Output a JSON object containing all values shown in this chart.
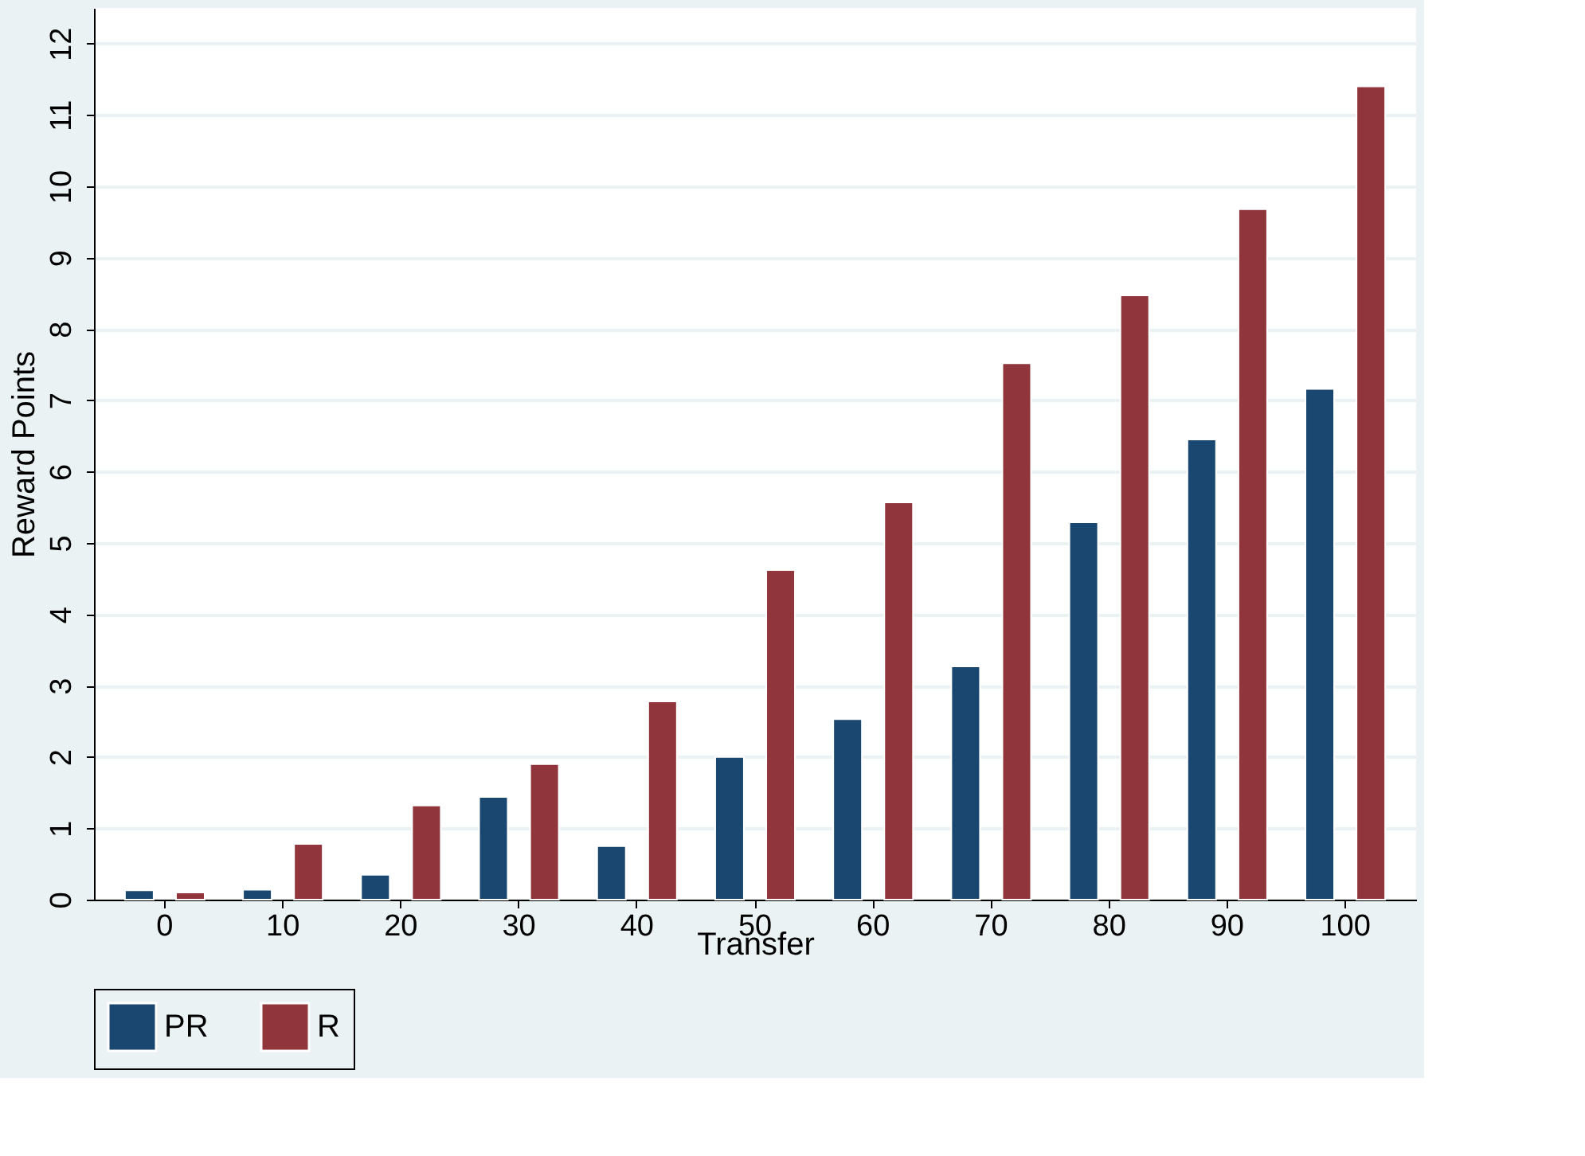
{
  "chart_data": {
    "type": "bar",
    "xlabel": "Transfer",
    "ylabel": "Reward Points",
    "categories": [
      "0",
      "10",
      "20",
      "30",
      "40",
      "50",
      "60",
      "70",
      "80",
      "90",
      "100"
    ],
    "series": [
      {
        "name": "PR",
        "color": "#1a476f",
        "values": [
          0.13,
          0.14,
          0.35,
          1.44,
          0.75,
          2.0,
          2.53,
          3.27,
          5.29,
          6.45,
          7.16
        ]
      },
      {
        "name": "R",
        "color": "#90353b",
        "values": [
          0.1,
          0.78,
          1.32,
          1.9,
          2.78,
          4.62,
          5.57,
          7.52,
          8.47,
          9.68,
          11.4
        ]
      }
    ],
    "ylim": [
      0,
      12.5
    ],
    "yticks": [
      0,
      1,
      2,
      3,
      4,
      5,
      6,
      7,
      8,
      9,
      10,
      11,
      12
    ],
    "grid": "y",
    "legend": "bottom"
  }
}
